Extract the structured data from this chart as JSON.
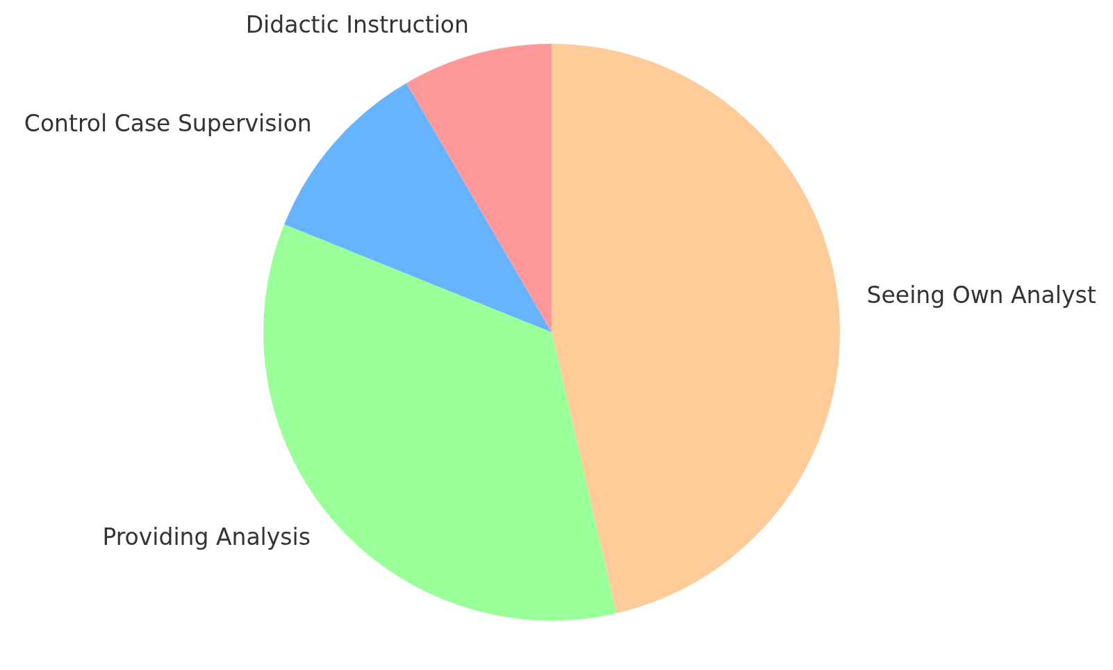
{
  "chart_data": {
    "type": "pie",
    "categories": [
      "Seeing Own Analyst",
      "Providing Analysis",
      "Control Case Supervision",
      "Didactic Instruction"
    ],
    "values": [
      46.4,
      34.7,
      10.5,
      8.4
    ],
    "colors": [
      "#ffcc99",
      "#99ff99",
      "#66b3ff",
      "#ff9999"
    ]
  }
}
